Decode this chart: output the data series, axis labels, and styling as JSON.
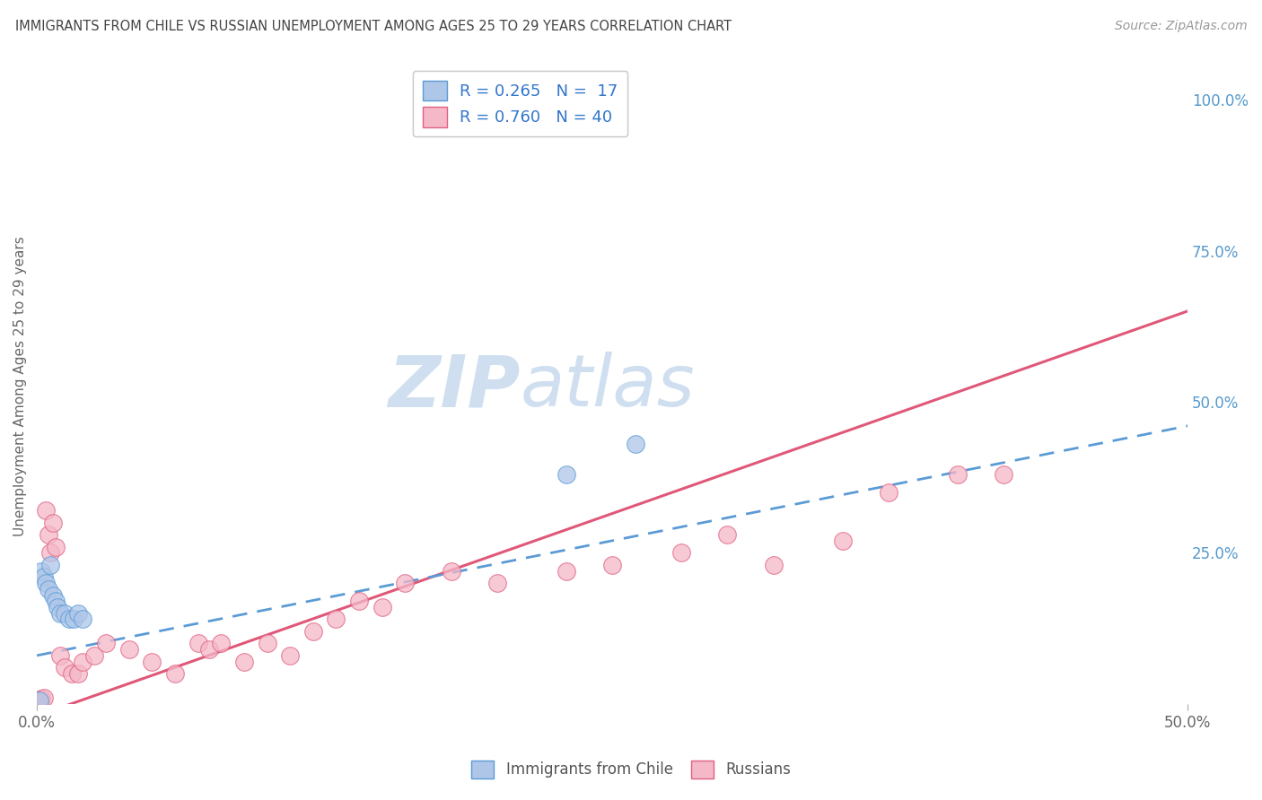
{
  "title": "IMMIGRANTS FROM CHILE VS RUSSIAN UNEMPLOYMENT AMONG AGES 25 TO 29 YEARS CORRELATION CHART",
  "source": "Source: ZipAtlas.com",
  "ylabel_left": "Unemployment Among Ages 25 to 29 years",
  "legend_bottom": [
    "Immigrants from Chile",
    "Russians"
  ],
  "legend_box_label1": "R = 0.265   N =  17",
  "legend_box_label2": "R = 0.760   N = 40",
  "chile_color": "#aec6e8",
  "chile_edge_color": "#5b9bd5",
  "chile_line_color": "#5b9bd5",
  "russia_color": "#f4b8c8",
  "russia_edge_color": "#e06080",
  "russia_line_color": "#e05878",
  "xlim": [
    0.0,
    0.5
  ],
  "ylim": [
    0.0,
    1.05
  ],
  "background_color": "#ffffff",
  "grid_color": "#cccccc",
  "watermark_color": "#d0dff0",
  "right_tick_color": "#5599cc",
  "axis_label_color": "#666666",
  "chile_scatter_x": [
    0.001,
    0.002,
    0.003,
    0.004,
    0.005,
    0.006,
    0.007,
    0.008,
    0.009,
    0.01,
    0.012,
    0.014,
    0.016,
    0.018,
    0.02,
    0.23,
    0.26
  ],
  "chile_scatter_y": [
    0.005,
    0.22,
    0.21,
    0.2,
    0.19,
    0.23,
    0.18,
    0.17,
    0.16,
    0.15,
    0.15,
    0.14,
    0.14,
    0.15,
    0.14,
    0.38,
    0.43
  ],
  "russia_scatter_x": [
    0.001,
    0.002,
    0.003,
    0.004,
    0.005,
    0.006,
    0.007,
    0.008,
    0.01,
    0.012,
    0.015,
    0.018,
    0.02,
    0.025,
    0.03,
    0.04,
    0.05,
    0.06,
    0.07,
    0.075,
    0.08,
    0.09,
    0.1,
    0.11,
    0.12,
    0.13,
    0.14,
    0.15,
    0.16,
    0.18,
    0.2,
    0.23,
    0.25,
    0.28,
    0.3,
    0.32,
    0.35,
    0.37,
    0.4,
    0.42
  ],
  "russia_scatter_y": [
    0.005,
    0.008,
    0.01,
    0.32,
    0.28,
    0.25,
    0.3,
    0.26,
    0.08,
    0.06,
    0.05,
    0.05,
    0.07,
    0.08,
    0.1,
    0.09,
    0.07,
    0.05,
    0.1,
    0.09,
    0.1,
    0.07,
    0.1,
    0.08,
    0.12,
    0.14,
    0.17,
    0.16,
    0.2,
    0.22,
    0.2,
    0.22,
    0.23,
    0.25,
    0.28,
    0.23,
    0.27,
    0.35,
    0.38,
    0.38
  ],
  "russia_trendline_x0": 0.0,
  "russia_trendline_y0": -0.02,
  "russia_trendline_x1": 0.5,
  "russia_trendline_y1": 0.65,
  "chile_trendline_x0": 0.0,
  "chile_trendline_y0": 0.08,
  "chile_trendline_x1": 0.5,
  "chile_trendline_y1": 0.46
}
